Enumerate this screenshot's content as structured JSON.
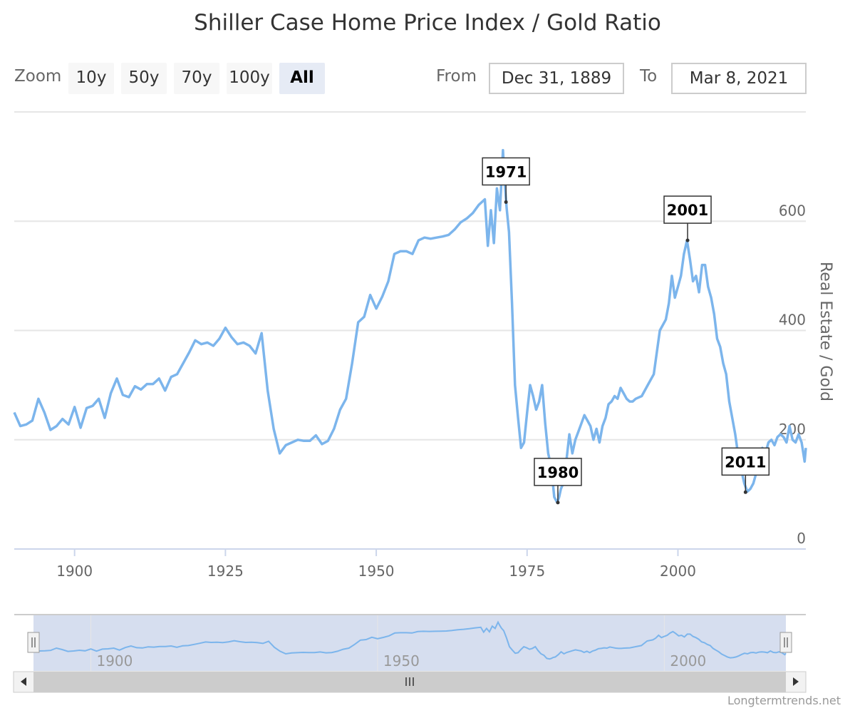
{
  "title": "Shiller Case Home Price Index / Gold Ratio",
  "zoom": {
    "label": "Zoom",
    "buttons": [
      "10y",
      "50y",
      "70y",
      "100y",
      "All"
    ],
    "active": "All"
  },
  "range": {
    "from_label": "From",
    "from_value": "Dec 31, 1889",
    "to_label": "To",
    "to_value": "Mar 8, 2021"
  },
  "credits": "Longtermtrends.net",
  "colors": {
    "series": "#7cb5ec",
    "navigator_fill": "#ccd6eb",
    "grid": "#e6e6e6"
  },
  "chart_data": {
    "type": "line",
    "title": "Shiller Case Home Price Index / Gold Ratio",
    "xlabel": "",
    "ylabel": "Real Estate / Gold",
    "xlim": [
      1890,
      2021.2
    ],
    "ylim": [
      0,
      800
    ],
    "x_ticks": [
      1900,
      1925,
      1950,
      1975,
      2000
    ],
    "y_ticks": [
      0,
      200,
      400,
      600
    ],
    "y_axis_side": "right",
    "grid": true,
    "legend": "none",
    "series": [
      {
        "x": [
          1890,
          1891,
          1892,
          1893,
          1894,
          1895,
          1896,
          1897,
          1898,
          1899,
          1900,
          1901,
          1902,
          1903,
          1904,
          1905,
          1906,
          1907,
          1908,
          1909,
          1910,
          1911,
          1912,
          1913,
          1914,
          1915,
          1916,
          1917,
          1918,
          1919,
          1920,
          1921,
          1922,
          1923,
          1924,
          1925,
          1926,
          1927,
          1928,
          1929,
          1930,
          1931,
          1932,
          1933,
          1934,
          1935,
          1936,
          1937,
          1938,
          1939,
          1940,
          1941,
          1942,
          1943,
          1944,
          1945,
          1946,
          1947,
          1948,
          1949,
          1950,
          1951,
          1952,
          1953,
          1954,
          1955,
          1956,
          1957,
          1958,
          1959,
          1960,
          1961,
          1962,
          1963,
          1964,
          1965,
          1966,
          1967,
          1968,
          1968.5,
          1969,
          1969.5,
          1970,
          1970.5,
          1971,
          1971.3,
          1971.6,
          1972,
          1972.5,
          1973,
          1973.5,
          1974,
          1974.5,
          1975,
          1975.5,
          1976,
          1976.5,
          1977,
          1977.5,
          1978,
          1978.5,
          1979,
          1979.5,
          1980,
          1980.3,
          1980.6,
          1981,
          1981.5,
          1982,
          1982.5,
          1983,
          1983.5,
          1984,
          1984.5,
          1985,
          1985.5,
          1986,
          1986.5,
          1987,
          1987.5,
          1988,
          1988.5,
          1989,
          1989.5,
          1990,
          1990.5,
          1991,
          1991.5,
          1992,
          1992.5,
          1993,
          1994,
          1995,
          1996,
          1997,
          1998,
          1998.5,
          1999,
          1999.5,
          2000,
          2000.5,
          2001,
          2001.5,
          2002,
          2002.5,
          2003,
          2003.5,
          2004,
          2004.5,
          2005,
          2005.5,
          2006,
          2006.5,
          2007,
          2007.5,
          2008,
          2008.5,
          2009,
          2009.5,
          2010,
          2010.5,
          2011,
          2011.5,
          2012,
          2012.5,
          2013,
          2013.5,
          2014,
          2014.5,
          2015,
          2015.5,
          2016,
          2016.5,
          2017,
          2017.5,
          2018,
          2018.5,
          2019,
          2019.5,
          2020,
          2020.5,
          2021,
          2021.2
        ],
        "values": [
          250,
          225,
          228,
          235,
          275,
          250,
          218,
          225,
          238,
          228,
          260,
          222,
          258,
          262,
          275,
          240,
          285,
          312,
          282,
          278,
          298,
          292,
          302,
          302,
          312,
          290,
          315,
          320,
          340,
          360,
          382,
          375,
          378,
          372,
          385,
          405,
          388,
          375,
          378,
          372,
          358,
          395,
          290,
          220,
          175,
          190,
          195,
          200,
          198,
          198,
          208,
          192,
          198,
          220,
          255,
          275,
          340,
          415,
          425,
          465,
          440,
          462,
          490,
          540,
          545,
          545,
          540,
          565,
          570,
          568,
          570,
          572,
          575,
          585,
          598,
          605,
          615,
          630,
          640,
          555,
          620,
          560,
          660,
          620,
          730,
          672,
          625,
          580,
          450,
          300,
          240,
          185,
          195,
          250,
          300,
          280,
          255,
          270,
          300,
          230,
          175,
          150,
          95,
          85,
          95,
          110,
          120,
          160,
          210,
          175,
          200,
          215,
          230,
          245,
          235,
          225,
          200,
          220,
          195,
          225,
          240,
          265,
          270,
          280,
          275,
          295,
          285,
          275,
          270,
          270,
          275,
          280,
          300,
          320,
          400,
          420,
          450,
          500,
          460,
          480,
          500,
          540,
          565,
          530,
          490,
          500,
          470,
          520,
          520,
          480,
          460,
          430,
          385,
          370,
          340,
          320,
          270,
          240,
          210,
          170,
          145,
          120,
          105,
          110,
          120,
          140,
          165,
          185,
          175,
          195,
          200,
          190,
          205,
          210,
          205,
          195,
          225,
          200,
          195,
          210,
          195,
          160,
          185
        ]
      }
    ],
    "annotations": [
      {
        "label": "1971",
        "x": 1971.5,
        "y": 635
      },
      {
        "label": "1980",
        "x": 1980.1,
        "y": 85
      },
      {
        "label": "2001",
        "x": 2001.6,
        "y": 565
      },
      {
        "label": "2011",
        "x": 2011.2,
        "y": 104
      }
    ],
    "navigator": {
      "x_ticks": [
        1900,
        1950,
        2000
      ]
    }
  }
}
